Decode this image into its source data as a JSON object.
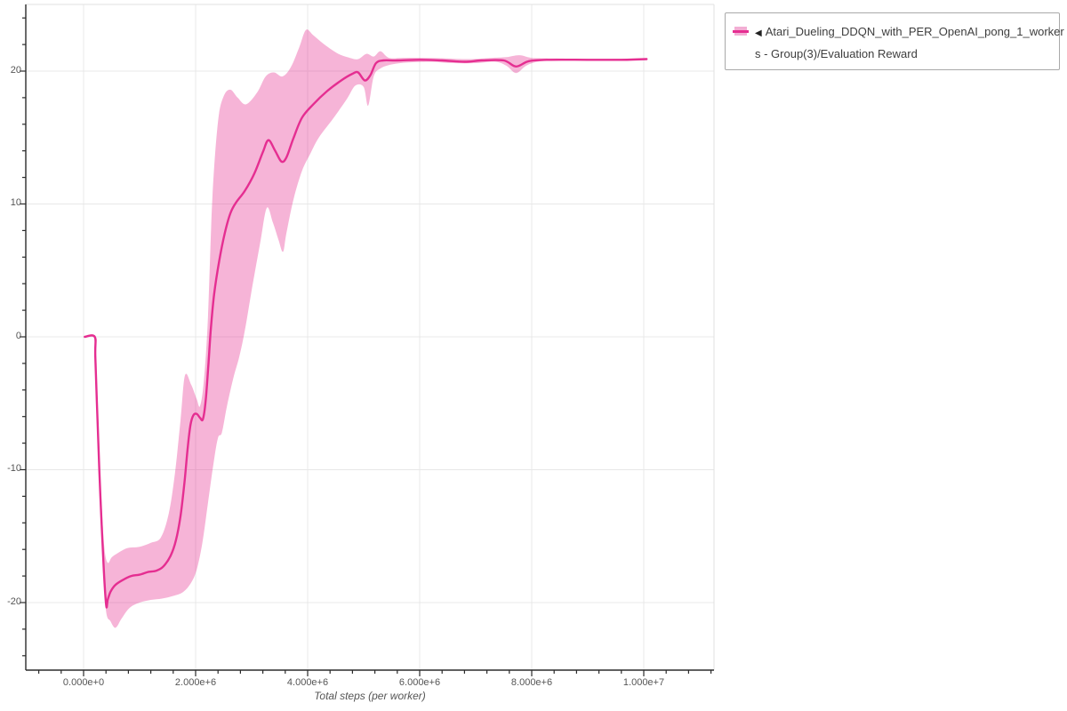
{
  "chart_data": {
    "type": "line",
    "title": "",
    "xlabel": "Total steps (per worker)",
    "ylabel": "",
    "x_range": [
      -1030000,
      11250000
    ],
    "y_range": [
      -25.1,
      25.0
    ],
    "grid": "major-only",
    "legend_position": "top-right-outside",
    "x_ticks": [
      {
        "v": 0,
        "label": "0.000e+0"
      },
      {
        "v": 2000000,
        "label": "2.000e+6"
      },
      {
        "v": 4000000,
        "label": "4.000e+6"
      },
      {
        "v": 6000000,
        "label": "6.000e+6"
      },
      {
        "v": 8000000,
        "label": "8.000e+6"
      },
      {
        "v": 10000000,
        "label": "1.000e+7"
      }
    ],
    "y_ticks": [
      {
        "v": 20,
        "label": "20"
      },
      {
        "v": 10,
        "label": "10"
      },
      {
        "v": 0,
        "label": "0"
      },
      {
        "v": -10,
        "label": "-10"
      },
      {
        "v": -20,
        "label": "-20"
      }
    ],
    "minor_ticks": {
      "x_step": 400000,
      "y_step": 2
    },
    "series": [
      {
        "name": "Atari_Dueling_DDQN_with_PER_OpenAI_pong_1_workers - Group(3)/Evaluation Reward",
        "color": "#e52e91",
        "band_color": "rgba(229,46,145,0.36)",
        "mean": [
          [
            20000,
            0
          ],
          [
            200000,
            0
          ],
          [
            210000,
            -1.5
          ],
          [
            250000,
            -6.5
          ],
          [
            300000,
            -12
          ],
          [
            360000,
            -17.5
          ],
          [
            405000,
            -20.25
          ],
          [
            430000,
            -19.8
          ],
          [
            480000,
            -19.2
          ],
          [
            560000,
            -18.7
          ],
          [
            700000,
            -18.3
          ],
          [
            850000,
            -18.0
          ],
          [
            1000000,
            -17.9
          ],
          [
            1150000,
            -17.7
          ],
          [
            1300000,
            -17.6
          ],
          [
            1420000,
            -17.3
          ],
          [
            1550000,
            -16.5
          ],
          [
            1650000,
            -15.3
          ],
          [
            1730000,
            -13.5
          ],
          [
            1800000,
            -11.0
          ],
          [
            1860000,
            -8.3
          ],
          [
            1910000,
            -6.6
          ],
          [
            1960000,
            -5.9
          ],
          [
            2020000,
            -5.8
          ],
          [
            2080000,
            -6.1
          ],
          [
            2130000,
            -6.2
          ],
          [
            2180000,
            -4.8
          ],
          [
            2230000,
            -2.0
          ],
          [
            2270000,
            0.5
          ],
          [
            2330000,
            3.2
          ],
          [
            2420000,
            5.7
          ],
          [
            2520000,
            7.8
          ],
          [
            2620000,
            9.3
          ],
          [
            2720000,
            10.1
          ],
          [
            2880000,
            11.0
          ],
          [
            3050000,
            12.3
          ],
          [
            3200000,
            13.9
          ],
          [
            3300000,
            14.8
          ],
          [
            3420000,
            14.0
          ],
          [
            3530000,
            13.2
          ],
          [
            3620000,
            13.5
          ],
          [
            3750000,
            15.0
          ],
          [
            3900000,
            16.5
          ],
          [
            4100000,
            17.5
          ],
          [
            4350000,
            18.5
          ],
          [
            4600000,
            19.3
          ],
          [
            4800000,
            19.8
          ],
          [
            4900000,
            19.9
          ],
          [
            5020000,
            19.3
          ],
          [
            5120000,
            19.7
          ],
          [
            5220000,
            20.6
          ],
          [
            5350000,
            20.8
          ],
          [
            5600000,
            20.8
          ],
          [
            6000000,
            20.85
          ],
          [
            6400000,
            20.8
          ],
          [
            6800000,
            20.7
          ],
          [
            7100000,
            20.8
          ],
          [
            7500000,
            20.8
          ],
          [
            7720000,
            20.35
          ],
          [
            7950000,
            20.75
          ],
          [
            8300000,
            20.85
          ],
          [
            9000000,
            20.85
          ],
          [
            9600000,
            20.85
          ],
          [
            10050000,
            20.9
          ]
        ],
        "band_upper": [
          [
            220000,
            -0.3
          ],
          [
            260000,
            -6
          ],
          [
            310000,
            -11.5
          ],
          [
            370000,
            -15.8
          ],
          [
            430000,
            -17.0
          ],
          [
            500000,
            -16.6
          ],
          [
            600000,
            -16.3
          ],
          [
            780000,
            -15.9
          ],
          [
            1000000,
            -15.8
          ],
          [
            1200000,
            -15.5
          ],
          [
            1380000,
            -15.1
          ],
          [
            1520000,
            -13.3
          ],
          [
            1630000,
            -10.3
          ],
          [
            1730000,
            -6.3
          ],
          [
            1810000,
            -2.9
          ],
          [
            1920000,
            -3.6
          ],
          [
            2020000,
            -4.7
          ],
          [
            2080000,
            -5.2
          ],
          [
            2150000,
            -3.2
          ],
          [
            2220000,
            1.5
          ],
          [
            2300000,
            10.5
          ],
          [
            2400000,
            16.2
          ],
          [
            2500000,
            18.1
          ],
          [
            2620000,
            18.6
          ],
          [
            2750000,
            18.0
          ],
          [
            2900000,
            17.5
          ],
          [
            3100000,
            18.4
          ],
          [
            3250000,
            19.6
          ],
          [
            3400000,
            19.9
          ],
          [
            3550000,
            19.6
          ],
          [
            3700000,
            20.3
          ],
          [
            3850000,
            21.8
          ],
          [
            3970000,
            23.1
          ],
          [
            4100000,
            22.7
          ],
          [
            4300000,
            22.0
          ],
          [
            4550000,
            21.3
          ],
          [
            4750000,
            21.0
          ],
          [
            4900000,
            20.9
          ],
          [
            5050000,
            21.3
          ],
          [
            5180000,
            21.1
          ],
          [
            5300000,
            21.5
          ],
          [
            5450000,
            21.0
          ],
          [
            5700000,
            21.0
          ],
          [
            6100000,
            21.0
          ],
          [
            6500000,
            20.95
          ],
          [
            6900000,
            20.9
          ],
          [
            7300000,
            21.0
          ],
          [
            7550000,
            21.05
          ],
          [
            7780000,
            21.2
          ],
          [
            8000000,
            21.0
          ],
          [
            8400000,
            20.95
          ],
          [
            9200000,
            20.9
          ],
          [
            10050000,
            20.95
          ]
        ],
        "band_lower": [
          [
            220000,
            -0.3
          ],
          [
            280000,
            -10
          ],
          [
            340000,
            -16.5
          ],
          [
            400000,
            -20.6
          ],
          [
            480000,
            -21.4
          ],
          [
            570000,
            -21.9
          ],
          [
            680000,
            -21.2
          ],
          [
            820000,
            -20.4
          ],
          [
            1000000,
            -20.0
          ],
          [
            1200000,
            -19.8
          ],
          [
            1400000,
            -19.7
          ],
          [
            1600000,
            -19.5
          ],
          [
            1780000,
            -19.2
          ],
          [
            1920000,
            -18.5
          ],
          [
            2020000,
            -17.5
          ],
          [
            2120000,
            -15.5
          ],
          [
            2220000,
            -12.5
          ],
          [
            2320000,
            -9.5
          ],
          [
            2400000,
            -7.6
          ],
          [
            2470000,
            -7.2
          ],
          [
            2560000,
            -5.2
          ],
          [
            2680000,
            -3.0
          ],
          [
            2780000,
            -1.5
          ],
          [
            2880000,
            0.5
          ],
          [
            3000000,
            3.5
          ],
          [
            3150000,
            7.0
          ],
          [
            3270000,
            9.7
          ],
          [
            3380000,
            8.6
          ],
          [
            3480000,
            7.3
          ],
          [
            3560000,
            6.4
          ],
          [
            3620000,
            7.8
          ],
          [
            3750000,
            10.4
          ],
          [
            3900000,
            12.5
          ],
          [
            4050000,
            13.8
          ],
          [
            4200000,
            15.0
          ],
          [
            4450000,
            16.4
          ],
          [
            4700000,
            17.9
          ],
          [
            4850000,
            18.9
          ],
          [
            5000000,
            18.8
          ],
          [
            5080000,
            17.4
          ],
          [
            5180000,
            19.6
          ],
          [
            5300000,
            20.2
          ],
          [
            5500000,
            20.5
          ],
          [
            5800000,
            20.65
          ],
          [
            6200000,
            20.7
          ],
          [
            6600000,
            20.6
          ],
          [
            7000000,
            20.6
          ],
          [
            7350000,
            20.7
          ],
          [
            7550000,
            20.4
          ],
          [
            7720000,
            19.85
          ],
          [
            7900000,
            20.4
          ],
          [
            8100000,
            20.7
          ],
          [
            8400000,
            20.8
          ],
          [
            9200000,
            20.8
          ],
          [
            10050000,
            20.85
          ]
        ]
      }
    ]
  },
  "axes": {
    "x_title": "Total steps (per worker)"
  },
  "legend": {
    "collapse_icon": "◀",
    "label_line1": "Atari_Dueling_DDQN_with_PER_OpenAI_pong_1_worker",
    "label_line2": "s - Group(3)/Evaluation Reward"
  },
  "colors": {
    "line": "#e52e91",
    "band": "#f3aed4",
    "grid": "#e8e8e8",
    "plot_border": "#e0e0e0",
    "axis": "#2b2b2b",
    "tick_text": "#555555",
    "legend_border": "#a9a9a9"
  }
}
